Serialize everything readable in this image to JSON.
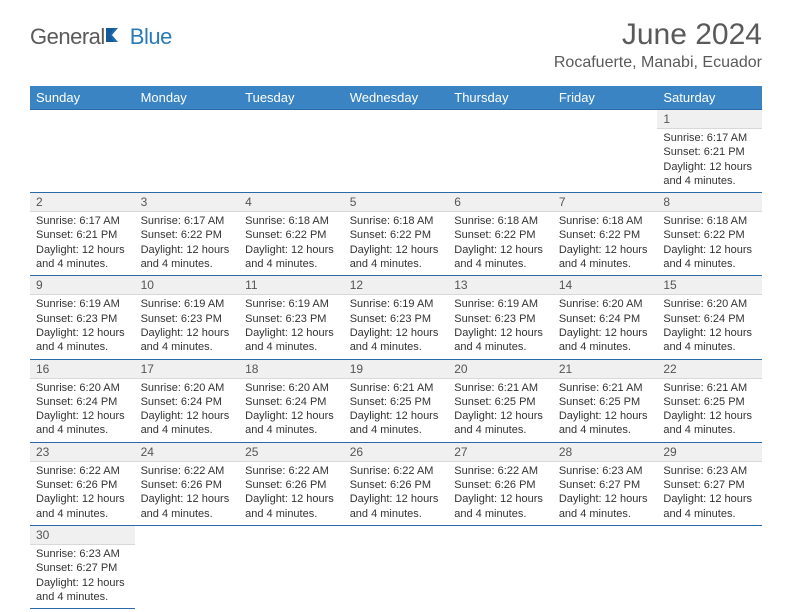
{
  "logo": {
    "part1": "General",
    "part2": "Blue"
  },
  "title": {
    "month": "June 2024",
    "location": "Rocafuerte, Manabi, Ecuador"
  },
  "dayHeaders": [
    "Sunday",
    "Monday",
    "Tuesday",
    "Wednesday",
    "Thursday",
    "Friday",
    "Saturday"
  ],
  "colors": {
    "header_bg": "#3a84c4",
    "header_text": "#ffffff",
    "border": "#2a6aa8",
    "daynum_bg": "#f0f0f0",
    "body_text": "#333333",
    "logo_grey": "#5a5a5a",
    "logo_blue": "#2a7ab8"
  },
  "fonts": {
    "title_size_pt": 22,
    "location_size_pt": 12,
    "header_size_pt": 10,
    "cell_size_pt": 8
  },
  "weeks": [
    [
      null,
      null,
      null,
      null,
      null,
      null,
      {
        "num": "1",
        "sunrise": "Sunrise: 6:17 AM",
        "sunset": "Sunset: 6:21 PM",
        "daylight1": "Daylight: 12 hours",
        "daylight2": "and 4 minutes."
      }
    ],
    [
      {
        "num": "2",
        "sunrise": "Sunrise: 6:17 AM",
        "sunset": "Sunset: 6:21 PM",
        "daylight1": "Daylight: 12 hours",
        "daylight2": "and 4 minutes."
      },
      {
        "num": "3",
        "sunrise": "Sunrise: 6:17 AM",
        "sunset": "Sunset: 6:22 PM",
        "daylight1": "Daylight: 12 hours",
        "daylight2": "and 4 minutes."
      },
      {
        "num": "4",
        "sunrise": "Sunrise: 6:18 AM",
        "sunset": "Sunset: 6:22 PM",
        "daylight1": "Daylight: 12 hours",
        "daylight2": "and 4 minutes."
      },
      {
        "num": "5",
        "sunrise": "Sunrise: 6:18 AM",
        "sunset": "Sunset: 6:22 PM",
        "daylight1": "Daylight: 12 hours",
        "daylight2": "and 4 minutes."
      },
      {
        "num": "6",
        "sunrise": "Sunrise: 6:18 AM",
        "sunset": "Sunset: 6:22 PM",
        "daylight1": "Daylight: 12 hours",
        "daylight2": "and 4 minutes."
      },
      {
        "num": "7",
        "sunrise": "Sunrise: 6:18 AM",
        "sunset": "Sunset: 6:22 PM",
        "daylight1": "Daylight: 12 hours",
        "daylight2": "and 4 minutes."
      },
      {
        "num": "8",
        "sunrise": "Sunrise: 6:18 AM",
        "sunset": "Sunset: 6:22 PM",
        "daylight1": "Daylight: 12 hours",
        "daylight2": "and 4 minutes."
      }
    ],
    [
      {
        "num": "9",
        "sunrise": "Sunrise: 6:19 AM",
        "sunset": "Sunset: 6:23 PM",
        "daylight1": "Daylight: 12 hours",
        "daylight2": "and 4 minutes."
      },
      {
        "num": "10",
        "sunrise": "Sunrise: 6:19 AM",
        "sunset": "Sunset: 6:23 PM",
        "daylight1": "Daylight: 12 hours",
        "daylight2": "and 4 minutes."
      },
      {
        "num": "11",
        "sunrise": "Sunrise: 6:19 AM",
        "sunset": "Sunset: 6:23 PM",
        "daylight1": "Daylight: 12 hours",
        "daylight2": "and 4 minutes."
      },
      {
        "num": "12",
        "sunrise": "Sunrise: 6:19 AM",
        "sunset": "Sunset: 6:23 PM",
        "daylight1": "Daylight: 12 hours",
        "daylight2": "and 4 minutes."
      },
      {
        "num": "13",
        "sunrise": "Sunrise: 6:19 AM",
        "sunset": "Sunset: 6:23 PM",
        "daylight1": "Daylight: 12 hours",
        "daylight2": "and 4 minutes."
      },
      {
        "num": "14",
        "sunrise": "Sunrise: 6:20 AM",
        "sunset": "Sunset: 6:24 PM",
        "daylight1": "Daylight: 12 hours",
        "daylight2": "and 4 minutes."
      },
      {
        "num": "15",
        "sunrise": "Sunrise: 6:20 AM",
        "sunset": "Sunset: 6:24 PM",
        "daylight1": "Daylight: 12 hours",
        "daylight2": "and 4 minutes."
      }
    ],
    [
      {
        "num": "16",
        "sunrise": "Sunrise: 6:20 AM",
        "sunset": "Sunset: 6:24 PM",
        "daylight1": "Daylight: 12 hours",
        "daylight2": "and 4 minutes."
      },
      {
        "num": "17",
        "sunrise": "Sunrise: 6:20 AM",
        "sunset": "Sunset: 6:24 PM",
        "daylight1": "Daylight: 12 hours",
        "daylight2": "and 4 minutes."
      },
      {
        "num": "18",
        "sunrise": "Sunrise: 6:20 AM",
        "sunset": "Sunset: 6:24 PM",
        "daylight1": "Daylight: 12 hours",
        "daylight2": "and 4 minutes."
      },
      {
        "num": "19",
        "sunrise": "Sunrise: 6:21 AM",
        "sunset": "Sunset: 6:25 PM",
        "daylight1": "Daylight: 12 hours",
        "daylight2": "and 4 minutes."
      },
      {
        "num": "20",
        "sunrise": "Sunrise: 6:21 AM",
        "sunset": "Sunset: 6:25 PM",
        "daylight1": "Daylight: 12 hours",
        "daylight2": "and 4 minutes."
      },
      {
        "num": "21",
        "sunrise": "Sunrise: 6:21 AM",
        "sunset": "Sunset: 6:25 PM",
        "daylight1": "Daylight: 12 hours",
        "daylight2": "and 4 minutes."
      },
      {
        "num": "22",
        "sunrise": "Sunrise: 6:21 AM",
        "sunset": "Sunset: 6:25 PM",
        "daylight1": "Daylight: 12 hours",
        "daylight2": "and 4 minutes."
      }
    ],
    [
      {
        "num": "23",
        "sunrise": "Sunrise: 6:22 AM",
        "sunset": "Sunset: 6:26 PM",
        "daylight1": "Daylight: 12 hours",
        "daylight2": "and 4 minutes."
      },
      {
        "num": "24",
        "sunrise": "Sunrise: 6:22 AM",
        "sunset": "Sunset: 6:26 PM",
        "daylight1": "Daylight: 12 hours",
        "daylight2": "and 4 minutes."
      },
      {
        "num": "25",
        "sunrise": "Sunrise: 6:22 AM",
        "sunset": "Sunset: 6:26 PM",
        "daylight1": "Daylight: 12 hours",
        "daylight2": "and 4 minutes."
      },
      {
        "num": "26",
        "sunrise": "Sunrise: 6:22 AM",
        "sunset": "Sunset: 6:26 PM",
        "daylight1": "Daylight: 12 hours",
        "daylight2": "and 4 minutes."
      },
      {
        "num": "27",
        "sunrise": "Sunrise: 6:22 AM",
        "sunset": "Sunset: 6:26 PM",
        "daylight1": "Daylight: 12 hours",
        "daylight2": "and 4 minutes."
      },
      {
        "num": "28",
        "sunrise": "Sunrise: 6:23 AM",
        "sunset": "Sunset: 6:27 PM",
        "daylight1": "Daylight: 12 hours",
        "daylight2": "and 4 minutes."
      },
      {
        "num": "29",
        "sunrise": "Sunrise: 6:23 AM",
        "sunset": "Sunset: 6:27 PM",
        "daylight1": "Daylight: 12 hours",
        "daylight2": "and 4 minutes."
      }
    ],
    [
      {
        "num": "30",
        "sunrise": "Sunrise: 6:23 AM",
        "sunset": "Sunset: 6:27 PM",
        "daylight1": "Daylight: 12 hours",
        "daylight2": "and 4 minutes."
      },
      null,
      null,
      null,
      null,
      null,
      null
    ]
  ]
}
